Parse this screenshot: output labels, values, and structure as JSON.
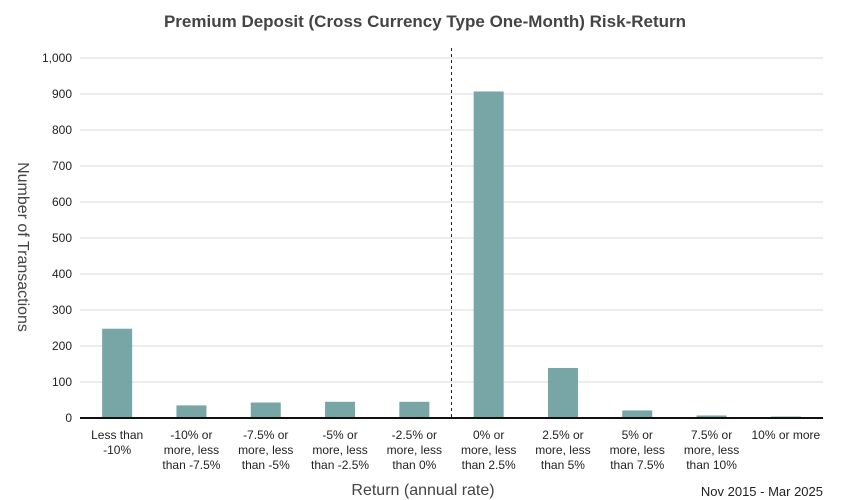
{
  "chart_data": {
    "type": "bar",
    "title": "Premium Deposit (Cross Currency Type One-Month) Risk-Return",
    "xlabel": "Return (annual rate)",
    "ylabel": "Number of Transactions",
    "period_note": "Nov 2015 - Mar 2025",
    "ylim": [
      0,
      1000
    ],
    "yticks": [
      0,
      100,
      200,
      300,
      400,
      500,
      600,
      700,
      800,
      900,
      1000
    ],
    "ytick_labels": [
      "0",
      "100",
      "200",
      "300",
      "400",
      "500",
      "600",
      "700",
      "800",
      "900",
      "1,000"
    ],
    "grid": true,
    "categories": [
      [
        "Less than",
        "-10%"
      ],
      [
        "-10% or",
        "more, less",
        "than -7.5%"
      ],
      [
        "-7.5% or",
        "more, less",
        "than -5%"
      ],
      [
        "-5% or",
        "more, less",
        "than -2.5%"
      ],
      [
        "-2.5% or",
        "more, less",
        "than 0%"
      ],
      [
        "0% or",
        "more, less",
        "than 2.5%"
      ],
      [
        "2.5% or",
        "more, less",
        "than 5%"
      ],
      [
        "5% or",
        "more, less",
        "than 7.5%"
      ],
      [
        "7.5% or",
        "more, less",
        "than 10%"
      ],
      [
        "10% or more"
      ]
    ],
    "values": [
      248,
      35,
      43,
      45,
      45,
      907,
      139,
      21,
      7,
      4
    ],
    "bar_color": "#78a5a5",
    "divider_between_categories": [
      4,
      5
    ]
  }
}
